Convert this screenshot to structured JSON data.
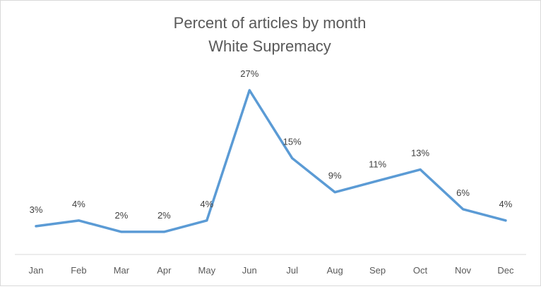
{
  "chart_data": {
    "type": "line",
    "title": "Percent of articles by month",
    "subtitle": "White Supremacy",
    "xlabel": "",
    "ylabel": "",
    "categories": [
      "Jan",
      "Feb",
      "Mar",
      "Apr",
      "May",
      "Jun",
      "Jul",
      "Aug",
      "Sep",
      "Oct",
      "Nov",
      "Dec"
    ],
    "series": [
      {
        "values": [
          3,
          4,
          2,
          2,
          4,
          27,
          15,
          9,
          11,
          13,
          6,
          4
        ],
        "labels": [
          "3%",
          "4%",
          "2%",
          "2%",
          "4%",
          "27%",
          "15%",
          "9%",
          "11%",
          "13%",
          "6%",
          "4%"
        ]
      }
    ],
    "ylim": [
      0,
      27
    ],
    "grid": false,
    "legend": "none",
    "line_color": "#5b9bd5",
    "axis_color": "#d9d9d9"
  }
}
